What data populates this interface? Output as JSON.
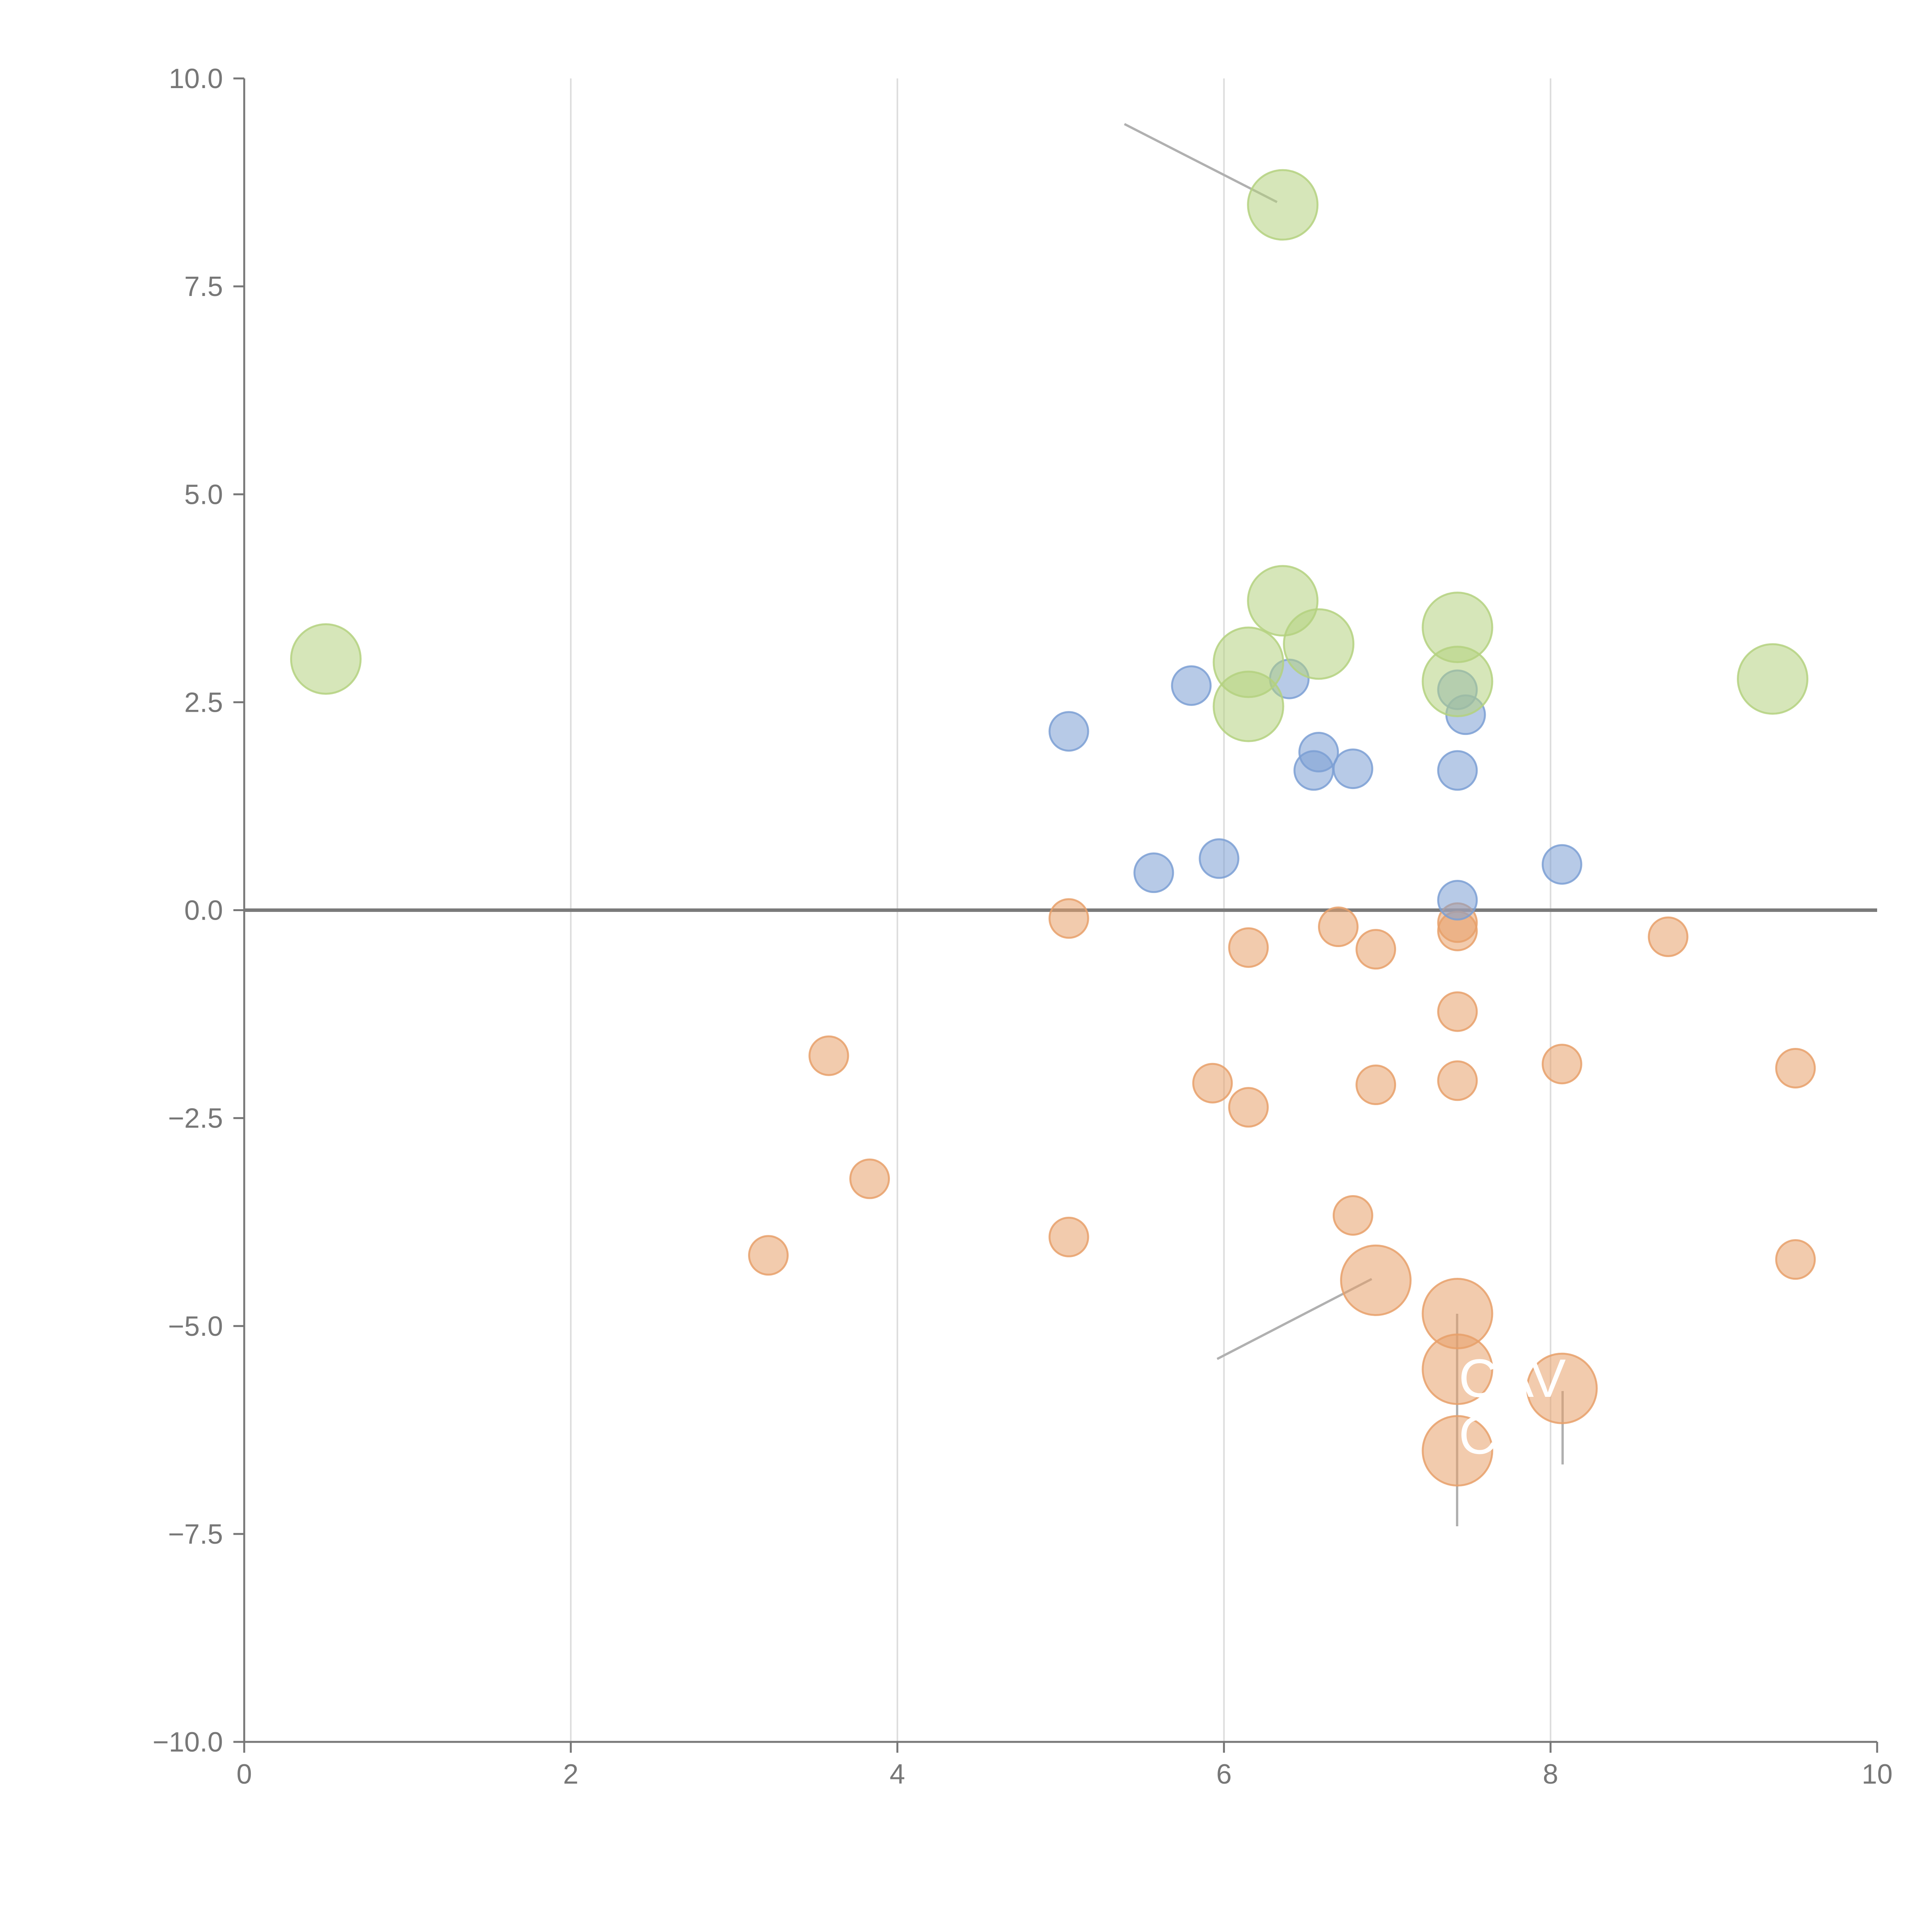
{
  "chart_data": {
    "type": "scatter",
    "title": "",
    "xlabel": "",
    "ylabel": "",
    "xlim": [
      0,
      10
    ],
    "ylim": [
      -10,
      10
    ],
    "x_ticks": [
      0,
      2,
      4,
      6,
      8,
      10
    ],
    "x_tick_labels": [
      "0",
      "2",
      "4",
      "6",
      "8",
      "10"
    ],
    "y_ticks": [
      10,
      7.5,
      5,
      2.5,
      0,
      -2.5,
      -5,
      -7.5,
      -10
    ],
    "y_tick_labels": [
      "10.0",
      "7.5",
      "5.0",
      "2.5",
      "0.0",
      "−2.5",
      "−5.0",
      "−7.5",
      "−10.0"
    ],
    "x_gridlines": [
      2,
      4,
      6,
      8
    ],
    "zero_line": 0,
    "series": [
      {
        "name": "orange",
        "color": "#e8a06a",
        "size": "small",
        "points": [
          [
            5.05,
            -0.1
          ],
          [
            6.15,
            -0.45
          ],
          [
            6.7,
            -0.2
          ],
          [
            6.93,
            -0.47
          ],
          [
            7.43,
            -0.15
          ],
          [
            7.43,
            -0.25
          ],
          [
            8.72,
            -0.32
          ],
          [
            7.43,
            -1.22
          ],
          [
            3.58,
            -1.75
          ],
          [
            5.93,
            -2.08
          ],
          [
            6.15,
            -2.37
          ],
          [
            6.93,
            -2.1
          ],
          [
            7.43,
            -2.05
          ],
          [
            8.07,
            -1.85
          ],
          [
            9.5,
            -1.9
          ],
          [
            3.83,
            -3.23
          ],
          [
            3.21,
            -4.15
          ],
          [
            5.05,
            -3.93
          ],
          [
            6.79,
            -3.67
          ],
          [
            9.5,
            -4.2
          ]
        ]
      },
      {
        "name": "blue",
        "color": "#7b9fd4",
        "size": "small",
        "points": [
          [
            5.05,
            2.15
          ],
          [
            5.8,
            2.7
          ],
          [
            6.4,
            2.78
          ],
          [
            7.43,
            2.65
          ],
          [
            7.48,
            2.35
          ],
          [
            6.58,
            1.9
          ],
          [
            6.55,
            1.68
          ],
          [
            6.79,
            1.7
          ],
          [
            7.43,
            1.68
          ],
          [
            5.57,
            0.45
          ],
          [
            5.97,
            0.62
          ],
          [
            8.07,
            0.55
          ],
          [
            7.43,
            0.12
          ]
        ]
      },
      {
        "name": "green",
        "color": "#b4d17f",
        "size": "large",
        "points": [
          [
            0.5,
            3.02
          ],
          [
            6.36,
            8.48
          ],
          [
            6.36,
            3.72
          ],
          [
            6.15,
            2.98
          ],
          [
            6.58,
            3.2
          ],
          [
            6.15,
            2.45
          ],
          [
            7.43,
            3.4
          ],
          [
            7.43,
            2.75
          ],
          [
            9.36,
            2.78
          ]
        ]
      },
      {
        "name": "orange-highlight",
        "color": "#e8a06a",
        "size": "large",
        "points": [
          [
            6.93,
            -4.45
          ],
          [
            7.43,
            -4.85
          ],
          [
            7.43,
            -5.52
          ],
          [
            8.07,
            -5.75
          ],
          [
            7.43,
            -6.5
          ]
        ]
      }
    ],
    "annotations": [
      "CAV",
      "C"
    ],
    "legend": "none"
  }
}
